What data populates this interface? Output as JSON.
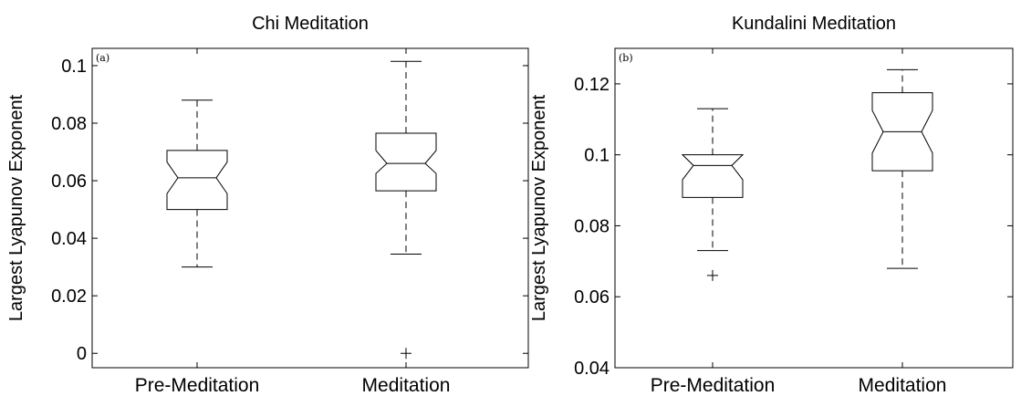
{
  "chart_data": [
    {
      "type": "box",
      "panel_label": "(a)",
      "title": "Chi Meditation",
      "xlabel": "",
      "ylabel": "Largest Lyapunov Exponent",
      "categories": [
        "Pre-Meditation",
        "Meditation"
      ],
      "ylim": [
        -0.005,
        0.106
      ],
      "yticks": [
        0,
        0.02,
        0.04,
        0.06,
        0.08,
        0.1
      ],
      "ytick_labels": [
        "0",
        "0.02",
        "0.04",
        "0.06",
        "0.08",
        "0.1"
      ],
      "notched": true,
      "boxes": [
        {
          "category": "Pre-Meditation",
          "whisker_low": 0.03,
          "q1": 0.05,
          "notch_low": 0.0555,
          "median": 0.061,
          "notch_high": 0.0665,
          "q3": 0.0705,
          "whisker_high": 0.088,
          "outliers": []
        },
        {
          "category": "Meditation",
          "whisker_low": 0.0345,
          "q1": 0.0565,
          "notch_low": 0.0625,
          "median": 0.066,
          "notch_high": 0.0705,
          "q3": 0.0765,
          "whisker_high": 0.1015,
          "outliers": [
            0.0
          ]
        }
      ]
    },
    {
      "type": "box",
      "panel_label": "(b)",
      "title": "Kundalini Meditation",
      "xlabel": "",
      "ylabel": "Largest Lyapunov Exponent",
      "categories": [
        "Pre-Meditation",
        "Meditation"
      ],
      "ylim": [
        0.04,
        0.13
      ],
      "yticks": [
        0.04,
        0.06,
        0.08,
        0.1,
        0.12
      ],
      "ytick_labels": [
        "0.04",
        "0.06",
        "0.08",
        "0.1",
        "0.12"
      ],
      "notched": true,
      "boxes": [
        {
          "category": "Pre-Meditation",
          "whisker_low": 0.073,
          "q1": 0.088,
          "notch_low": 0.093,
          "median": 0.097,
          "notch_high": 0.1,
          "q3": 0.1,
          "whisker_high": 0.113,
          "outliers": [
            0.066
          ]
        },
        {
          "category": "Meditation",
          "whisker_low": 0.068,
          "q1": 0.0955,
          "notch_low": 0.1005,
          "median": 0.1065,
          "notch_high": 0.1125,
          "q3": 0.1175,
          "whisker_high": 0.124,
          "outliers": []
        }
      ]
    }
  ]
}
